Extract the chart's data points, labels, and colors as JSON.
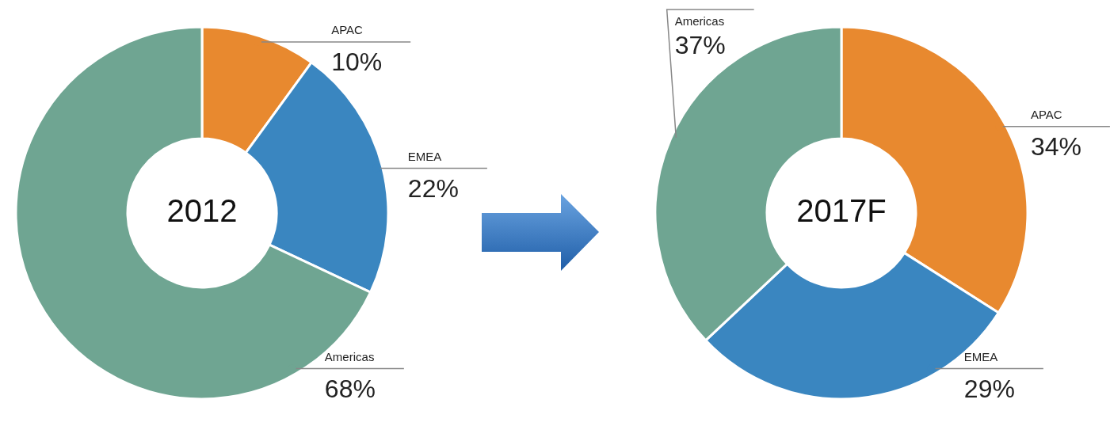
{
  "chart_data": [
    {
      "type": "donut",
      "title": "2012",
      "categories": [
        "APAC",
        "EMEA",
        "Americas"
      ],
      "values": [
        10,
        22,
        68
      ],
      "colors": [
        "#e8892f",
        "#3a86c0",
        "#6fa592"
      ],
      "value_labels": [
        "10%",
        "22%",
        "68%"
      ],
      "legend": false
    },
    {
      "type": "donut",
      "title": "2017F",
      "categories": [
        "APAC",
        "EMEA",
        "Americas"
      ],
      "values": [
        34,
        29,
        37
      ],
      "colors": [
        "#e8892f",
        "#3a86c0",
        "#6fa592"
      ],
      "value_labels": [
        "34%",
        "29%",
        "37%"
      ],
      "legend": false
    }
  ]
}
